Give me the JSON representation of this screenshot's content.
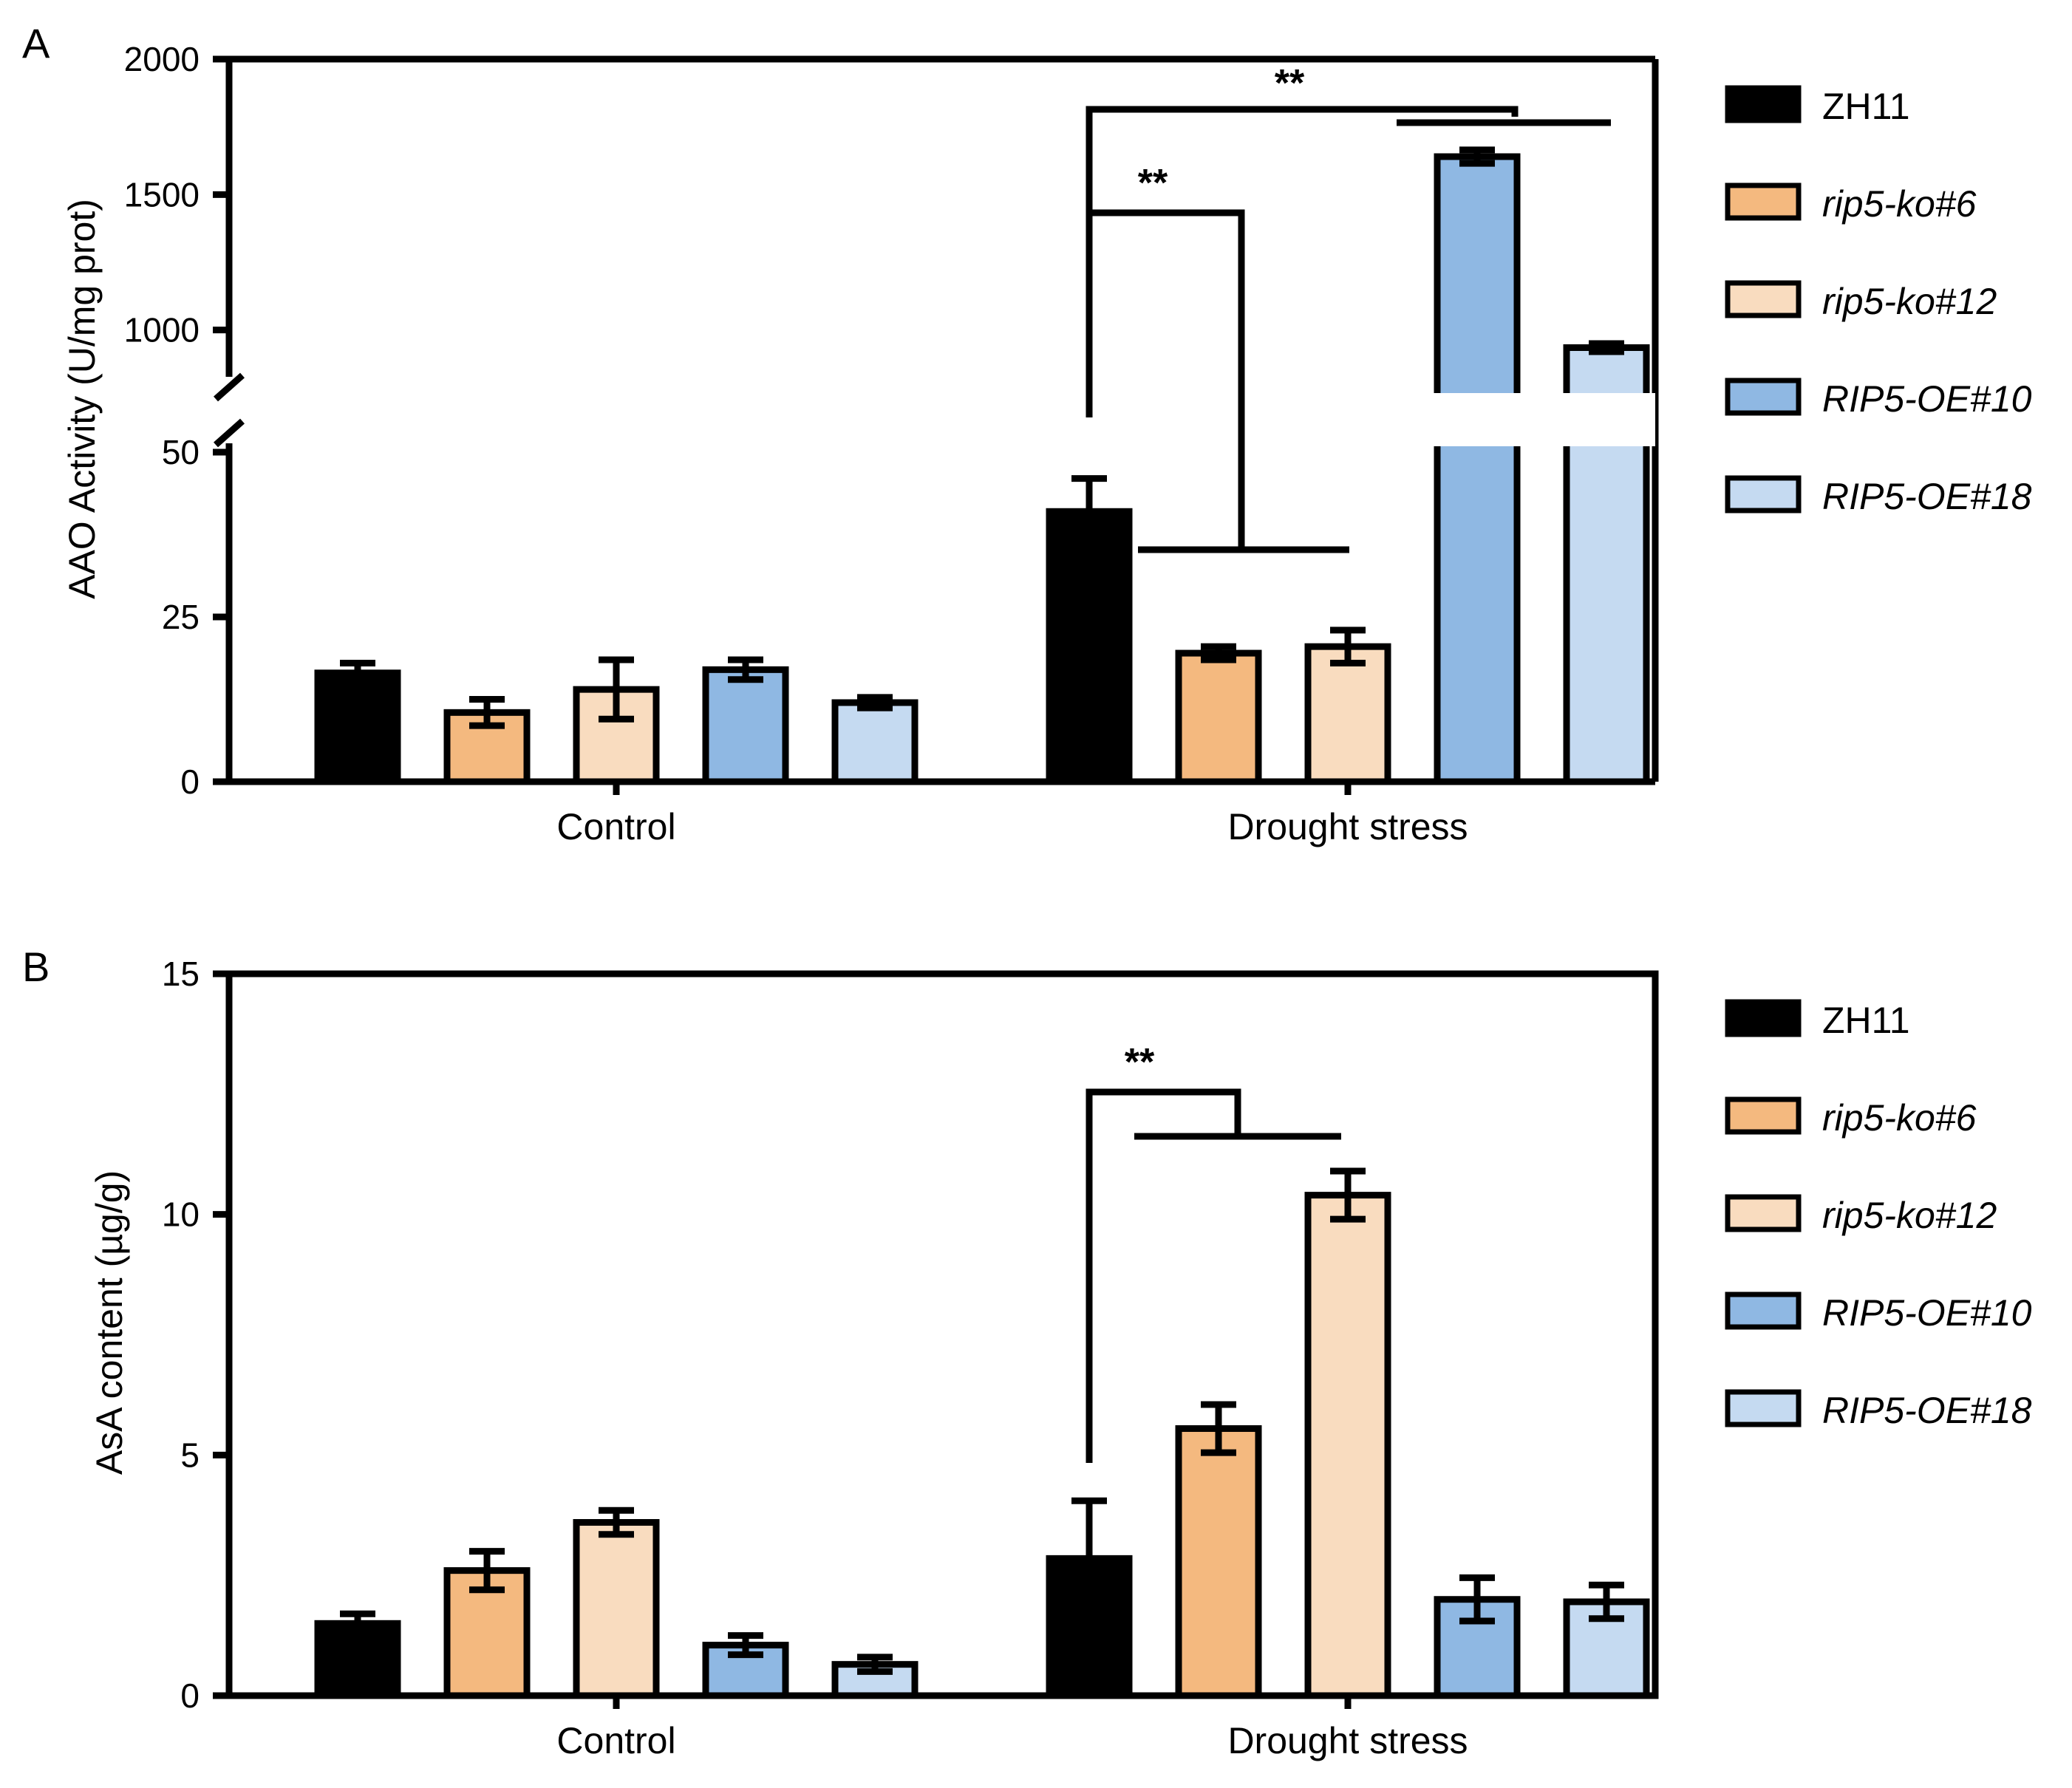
{
  "colors": {
    "ZH11": "#000000",
    "rip5-ko#6": "#f4b97f",
    "rip5-ko#12": "#f9dcbf",
    "RIP5-OE#10": "#8fb8e3",
    "RIP5-OE#18": "#c5daf1"
  },
  "legend": [
    {
      "label": "ZH11",
      "italic": false
    },
    {
      "label": "rip5-ko#6",
      "italic": true
    },
    {
      "label": "rip5-ko#12",
      "italic": true
    },
    {
      "label": "RIP5-OE#10",
      "italic": true
    },
    {
      "label": "RIP5-OE#18",
      "italic": true
    }
  ],
  "chart_data": [
    {
      "panel": "A",
      "type": "bar",
      "ylabel": "AAO Activity (U/mg prot)",
      "axis_break": {
        "lower": [
          0,
          50
        ],
        "upper": [
          800,
          2000
        ]
      },
      "lower_ticks": [
        "0",
        "25",
        "50"
      ],
      "upper_ticks": [
        "1000",
        "1500",
        "2000"
      ],
      "categories": [
        "Control",
        "Drought stress"
      ],
      "series": [
        {
          "name": "ZH11",
          "values": [
            16.5,
            41
          ],
          "errors": [
            1.5,
            5
          ]
        },
        {
          "name": "rip5-ko#6",
          "values": [
            10.5,
            19.5
          ],
          "errors": [
            2,
            1
          ]
        },
        {
          "name": "rip5-ko#12",
          "values": [
            14,
            20.5
          ],
          "errors": [
            4.5,
            2.5
          ]
        },
        {
          "name": "RIP5-OE#10",
          "values": [
            17,
            1640
          ],
          "errors": [
            1.5,
            25
          ]
        },
        {
          "name": "RIP5-OE#18",
          "values": [
            12,
            935
          ],
          "errors": [
            0.8,
            15
          ]
        }
      ],
      "significance": [
        "**",
        "**"
      ]
    },
    {
      "panel": "B",
      "type": "bar",
      "ylabel": "AsA content (µg/g)",
      "ylim": [
        0,
        15
      ],
      "ticks": [
        "0",
        "5",
        "10",
        "15"
      ],
      "categories": [
        "Control",
        "Drought stress"
      ],
      "series": [
        {
          "name": "ZH11",
          "values": [
            1.5,
            2.85
          ],
          "errors": [
            0.2,
            1.2
          ]
        },
        {
          "name": "rip5-ko#6",
          "values": [
            2.6,
            5.55
          ],
          "errors": [
            0.4,
            0.5
          ]
        },
        {
          "name": "rip5-ko#12",
          "values": [
            3.6,
            10.4
          ],
          "errors": [
            0.25,
            0.5
          ]
        },
        {
          "name": "RIP5-OE#10",
          "values": [
            1.05,
            2.0
          ],
          "errors": [
            0.2,
            0.45
          ]
        },
        {
          "name": "RIP5-OE#18",
          "values": [
            0.65,
            1.95
          ],
          "errors": [
            0.15,
            0.35
          ]
        }
      ],
      "significance": [
        "**"
      ]
    }
  ]
}
